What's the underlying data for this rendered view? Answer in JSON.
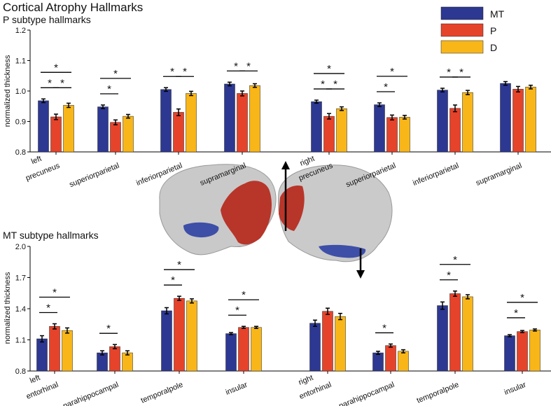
{
  "title": "Cortical Atrophy Hallmarks",
  "chart_data": [
    {
      "type": "bar",
      "title": "P subtype hallmarks",
      "ylabel": "normalized thickness",
      "categories": [
        "precuneus",
        "superiorparietal",
        "inferiorparietal",
        "supramarginal",
        "precuneus",
        "superiorparietal",
        "inferiorparietal",
        "supramarginal"
      ],
      "group_labels": [
        "left",
        "right"
      ],
      "ylim": [
        0.8,
        1.2
      ],
      "yticks": [
        0.8,
        0.9,
        {
          "value": 1,
          "label": "1.0"
        },
        1.1,
        1.2
      ],
      "series": [
        {
          "name": "MT",
          "color": "#2d3892",
          "values": [
            0.968,
            0.948,
            1.005,
            1.023,
            0.965,
            0.955,
            1.003,
            1.025
          ],
          "errors": [
            0.006,
            0.006,
            0.006,
            0.006,
            0.005,
            0.006,
            0.006,
            0.006
          ]
        },
        {
          "name": "P",
          "color": "#e6432b",
          "values": [
            0.915,
            0.897,
            0.93,
            0.992,
            0.917,
            0.913,
            0.943,
            1.006
          ],
          "errors": [
            0.009,
            0.008,
            0.011,
            0.008,
            0.009,
            0.008,
            0.011,
            0.009
          ]
        },
        {
          "name": "D",
          "color": "#f8b619",
          "values": [
            0.953,
            0.917,
            0.992,
            1.018,
            0.942,
            0.914,
            0.995,
            1.013
          ],
          "errors": [
            0.007,
            0.006,
            0.007,
            0.006,
            0.006,
            0.006,
            0.007,
            0.006
          ]
        }
      ],
      "annotations": [
        {
          "category": 0,
          "pair": [
            0,
            2
          ],
          "text": "*"
        },
        {
          "category": 0,
          "pair": [
            0,
            1
          ],
          "text": "*"
        },
        {
          "category": 0,
          "pair": [
            1,
            2
          ],
          "text": "*"
        },
        {
          "category": 1,
          "pair": [
            0,
            2
          ],
          "text": "*"
        },
        {
          "category": 1,
          "pair": [
            0,
            1
          ],
          "text": "*"
        },
        {
          "category": 2,
          "pair": [
            0,
            1
          ],
          "text": "*"
        },
        {
          "category": 2,
          "pair": [
            1,
            2
          ],
          "text": "*"
        },
        {
          "category": 3,
          "pair": [
            0,
            1
          ],
          "text": "*"
        },
        {
          "category": 3,
          "pair": [
            1,
            2
          ],
          "text": "*"
        },
        {
          "category": 4,
          "pair": [
            0,
            2
          ],
          "text": "*"
        },
        {
          "category": 4,
          "pair": [
            0,
            1
          ],
          "text": "*"
        },
        {
          "category": 4,
          "pair": [
            1,
            2
          ],
          "text": "*"
        },
        {
          "category": 5,
          "pair": [
            0,
            2
          ],
          "text": "*"
        },
        {
          "category": 5,
          "pair": [
            0,
            1
          ],
          "text": "*"
        },
        {
          "category": 6,
          "pair": [
            0,
            1
          ],
          "text": "*"
        },
        {
          "category": 6,
          "pair": [
            1,
            2
          ],
          "text": "*"
        }
      ]
    },
    {
      "type": "bar",
      "title": "MT subtype hallmarks",
      "ylabel": "normalized thickness",
      "categories": [
        "entorhinal",
        "parahippocampal",
        "temporalpole",
        "insular",
        "entorhinal",
        "parahippocampal",
        "temporalpole",
        "insular"
      ],
      "group_labels": [
        "left",
        "right"
      ],
      "ylim": [
        0.8,
        2.0
      ],
      "yticks": [
        0.8,
        1.1,
        1.4,
        1.7,
        {
          "value": 2,
          "label": "2.0"
        }
      ],
      "series": [
        {
          "color": "#2d3892",
          "values": [
            1.11,
            0.975,
            1.38,
            1.16,
            1.26,
            0.975,
            1.43,
            1.14
          ],
          "errors": [
            0.03,
            0.02,
            0.03,
            0.01,
            0.03,
            0.015,
            0.035,
            0.01
          ]
        },
        {
          "color": "#e6432b",
          "values": [
            1.23,
            1.035,
            1.5,
            1.22,
            1.375,
            1.045,
            1.545,
            1.18
          ],
          "errors": [
            0.025,
            0.02,
            0.02,
            0.01,
            0.03,
            0.015,
            0.025,
            0.01
          ]
        },
        {
          "color": "#f8b619",
          "values": [
            1.19,
            0.975,
            1.475,
            1.22,
            1.325,
            0.99,
            1.515,
            1.195
          ],
          "errors": [
            0.025,
            0.02,
            0.02,
            0.01,
            0.03,
            0.015,
            0.02,
            0.01
          ]
        }
      ],
      "annotations": [
        {
          "category": 0,
          "pair": [
            0,
            2
          ],
          "text": "*"
        },
        {
          "category": 0,
          "pair": [
            0,
            1
          ],
          "text": "*"
        },
        {
          "category": 1,
          "pair": [
            0,
            1
          ],
          "text": "*"
        },
        {
          "category": 2,
          "pair": [
            0,
            2
          ],
          "text": "*"
        },
        {
          "category": 2,
          "pair": [
            0,
            1
          ],
          "text": "*"
        },
        {
          "category": 3,
          "pair": [
            0,
            2
          ],
          "text": "*"
        },
        {
          "category": 3,
          "pair": [
            0,
            1
          ],
          "text": "*"
        },
        {
          "category": 5,
          "pair": [
            0,
            1
          ],
          "text": "*"
        },
        {
          "category": 6,
          "pair": [
            0,
            2
          ],
          "text": "*"
        },
        {
          "category": 6,
          "pair": [
            0,
            1
          ],
          "text": "*"
        },
        {
          "category": 7,
          "pair": [
            0,
            2
          ],
          "text": "*"
        },
        {
          "category": 7,
          "pair": [
            0,
            1
          ],
          "text": "*"
        }
      ]
    }
  ]
}
